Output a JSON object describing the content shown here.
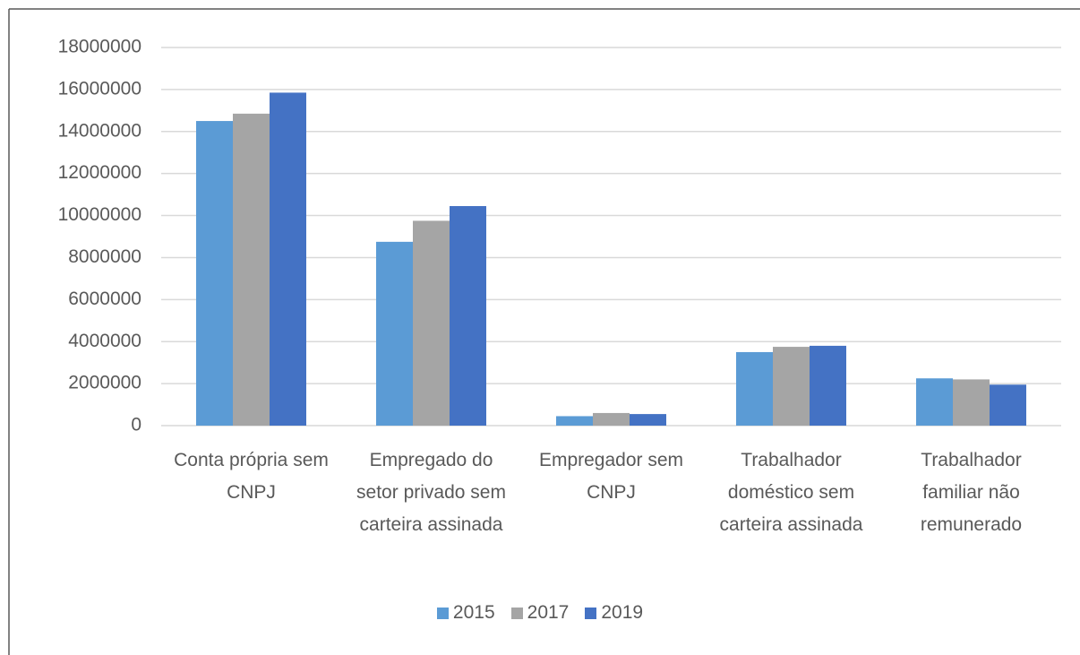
{
  "chart_data": {
    "type": "bar",
    "categories": [
      "Conta própria sem CNPJ",
      "Empregado do setor privado sem carteira assinada",
      "Empregador sem CNPJ",
      "Trabalhador doméstico sem carteira assinada",
      "Trabalhador familiar não remunerado"
    ],
    "series": [
      {
        "name": "2015",
        "color": "#5b9bd5",
        "values": [
          14500000,
          8750000,
          450000,
          3500000,
          2250000
        ]
      },
      {
        "name": "2017",
        "color": "#a5a5a5",
        "values": [
          14850000,
          9750000,
          600000,
          3750000,
          2200000
        ]
      },
      {
        "name": "2019",
        "color": "#4472c4",
        "values": [
          15850000,
          10450000,
          550000,
          3800000,
          1950000
        ]
      }
    ],
    "ylim": [
      0,
      18000000
    ],
    "yticks": [
      0,
      2000000,
      4000000,
      6000000,
      8000000,
      10000000,
      12000000,
      14000000,
      16000000,
      18000000
    ],
    "grid": true,
    "legend": "bottom"
  }
}
